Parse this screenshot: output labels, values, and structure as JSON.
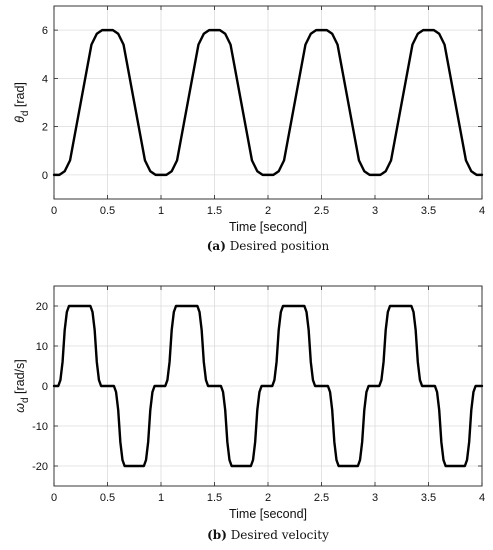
{
  "chart_data": [
    {
      "type": "line",
      "caption_label": "(a)",
      "caption_text": "Desired position",
      "xlabel": "Time [second]",
      "ylabel_symbol": "θ",
      "ylabel_sub": "d",
      "ylabel_unit": " [rad]",
      "xlim": [
        0,
        4
      ],
      "ylim": [
        -1,
        7
      ],
      "xticks": [
        0,
        0.5,
        1,
        1.5,
        2,
        2.5,
        3,
        3.5,
        4
      ],
      "xtick_labels": [
        "0",
        "0.5",
        "1",
        "1.5",
        "2",
        "2.5",
        "3",
        "3.5",
        "4"
      ],
      "yticks": [
        0,
        2,
        4,
        6
      ],
      "ytick_labels": [
        "0",
        "2",
        "4",
        "6"
      ],
      "grid": true,
      "series": [
        {
          "color": "#000000",
          "x": [
            0,
            0.05,
            0.1,
            0.15,
            0.35,
            0.4,
            0.45,
            0.55,
            0.6,
            0.65,
            0.85,
            0.9,
            0.95,
            1.05,
            1.1,
            1.15,
            1.35,
            1.4,
            1.45,
            1.55,
            1.6,
            1.65,
            1.85,
            1.9,
            1.95,
            2.05,
            2.1,
            2.15,
            2.35,
            2.4,
            2.45,
            2.55,
            2.6,
            2.65,
            2.85,
            2.9,
            2.95,
            3.05,
            3.1,
            3.15,
            3.35,
            3.4,
            3.45,
            3.55,
            3.6,
            3.65,
            3.85,
            3.9,
            3.95,
            4.0
          ],
          "y": [
            0,
            0,
            0.15,
            0.6,
            5.4,
            5.85,
            6,
            6,
            5.85,
            5.4,
            0.6,
            0.15,
            0,
            0,
            0.15,
            0.6,
            5.4,
            5.85,
            6,
            6,
            5.85,
            5.4,
            0.6,
            0.15,
            0,
            0,
            0.15,
            0.6,
            5.4,
            5.85,
            6,
            6,
            5.85,
            5.4,
            0.6,
            0.15,
            0,
            0,
            0.15,
            0.6,
            5.4,
            5.85,
            6,
            6,
            5.85,
            5.4,
            0.6,
            0.15,
            0,
            0
          ]
        }
      ]
    },
    {
      "type": "line",
      "caption_label": "(b)",
      "caption_text": "Desired velocity",
      "xlabel": "Time [second]",
      "ylabel_symbol": "ω",
      "ylabel_sub": "d",
      "ylabel_unit": " [rad/s]",
      "xlim": [
        0,
        4
      ],
      "ylim": [
        -25,
        25
      ],
      "xticks": [
        0,
        0.5,
        1,
        1.5,
        2,
        2.5,
        3,
        3.5,
        4
      ],
      "xtick_labels": [
        "0",
        "0.5",
        "1",
        "1.5",
        "2",
        "2.5",
        "3",
        "3.5",
        "4"
      ],
      "yticks": [
        -20,
        -10,
        0,
        10,
        20
      ],
      "ytick_labels": [
        "-20",
        "-10",
        "0",
        "10",
        "20"
      ],
      "grid": true,
      "series": [
        {
          "color": "#000000",
          "x": [
            0,
            0.04,
            0.06,
            0.08,
            0.1,
            0.12,
            0.14,
            0.16,
            0.34,
            0.36,
            0.38,
            0.4,
            0.42,
            0.44,
            0.46,
            0.54,
            0.56,
            0.58,
            0.6,
            0.62,
            0.64,
            0.66,
            0.84,
            0.86,
            0.88,
            0.9,
            0.92,
            0.94,
            0.96,
            1.04,
            1.06,
            1.08,
            1.1,
            1.12,
            1.14,
            1.16,
            1.34,
            1.36,
            1.38,
            1.4,
            1.42,
            1.44,
            1.46,
            1.54,
            1.56,
            1.58,
            1.6,
            1.62,
            1.64,
            1.66,
            1.84,
            1.86,
            1.88,
            1.9,
            1.92,
            1.94,
            1.96,
            2.04,
            2.06,
            2.08,
            2.1,
            2.12,
            2.14,
            2.16,
            2.34,
            2.36,
            2.38,
            2.4,
            2.42,
            2.44,
            2.46,
            2.54,
            2.56,
            2.58,
            2.6,
            2.62,
            2.64,
            2.66,
            2.84,
            2.86,
            2.88,
            2.9,
            2.92,
            2.94,
            2.96,
            3.04,
            3.06,
            3.08,
            3.1,
            3.12,
            3.14,
            3.16,
            3.34,
            3.36,
            3.38,
            3.4,
            3.42,
            3.44,
            3.46,
            3.54,
            3.56,
            3.58,
            3.6,
            3.62,
            3.64,
            3.66,
            3.84,
            3.86,
            3.88,
            3.9,
            3.92,
            3.94,
            3.96,
            4.0
          ],
          "y": [
            0,
            0,
            1.5,
            6,
            14,
            18.5,
            20,
            20,
            20,
            18.5,
            14,
            6,
            1.5,
            0,
            0,
            0,
            0,
            -1.5,
            -6,
            -14,
            -18.5,
            -20,
            -20,
            -18.5,
            -14,
            -6,
            -1.5,
            0,
            0,
            0,
            1.5,
            6,
            14,
            18.5,
            20,
            20,
            20,
            18.5,
            14,
            6,
            1.5,
            0,
            0,
            0,
            0,
            -1.5,
            -6,
            -14,
            -18.5,
            -20,
            -20,
            -18.5,
            -14,
            -6,
            -1.5,
            0,
            0,
            0,
            1.5,
            6,
            14,
            18.5,
            20,
            20,
            20,
            18.5,
            14,
            6,
            1.5,
            0,
            0,
            0,
            0,
            -1.5,
            -6,
            -14,
            -18.5,
            -20,
            -20,
            -18.5,
            -14,
            -6,
            -1.5,
            0,
            0,
            0,
            1.5,
            6,
            14,
            18.5,
            20,
            20,
            20,
            18.5,
            14,
            6,
            1.5,
            0,
            0,
            0,
            0,
            -1.5,
            -6,
            -14,
            -18.5,
            -20,
            -20,
            -18.5,
            -14,
            -6,
            -1.5,
            0,
            0,
            0
          ]
        }
      ]
    }
  ]
}
